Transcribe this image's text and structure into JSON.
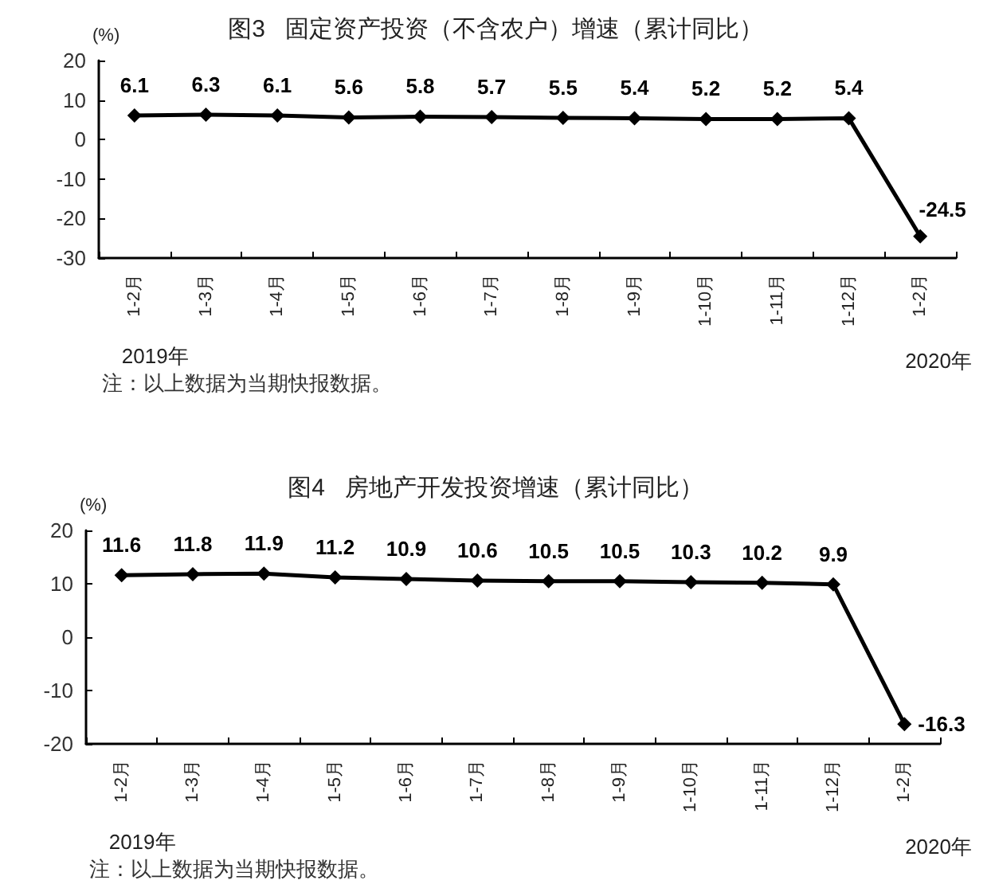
{
  "chart_data": [
    {
      "type": "line",
      "title": "图3   固定资产投资（不含农户）增速（累计同比）",
      "ylabel": "(%)",
      "categories": [
        "1-2月",
        "1-3月",
        "1-4月",
        "1-5月",
        "1-6月",
        "1-7月",
        "1-8月",
        "1-9月",
        "1-10月",
        "1-11月",
        "1-12月",
        "1-2月"
      ],
      "series": [
        {
          "color": "#000000",
          "values": [
            6.1,
            6.3,
            6.1,
            5.6,
            5.8,
            5.7,
            5.5,
            5.4,
            5.2,
            5.2,
            5.4,
            -24.5
          ]
        }
      ],
      "ylim": [
        -30,
        20
      ],
      "yticks": [
        -30,
        -20,
        -10,
        0,
        10,
        20
      ],
      "marker": "diamond",
      "data_labels": true,
      "annotations": [
        "2019年",
        "2020年",
        "注：以上数据为当期快报数据。"
      ]
    },
    {
      "type": "line",
      "title": "图4   房地产开发投资增速（累计同比）",
      "ylabel": "(%)",
      "categories": [
        "1-2月",
        "1-3月",
        "1-4月",
        "1-5月",
        "1-6月",
        "1-7月",
        "1-8月",
        "1-9月",
        "1-10月",
        "1-11月",
        "1-12月",
        "1-2月"
      ],
      "series": [
        {
          "color": "#000000",
          "values": [
            11.6,
            11.8,
            11.9,
            11.2,
            10.9,
            10.6,
            10.5,
            10.5,
            10.3,
            10.2,
            9.9,
            -16.3
          ]
        }
      ],
      "ylim": [
        -20,
        20
      ],
      "yticks": [
        -20,
        -10,
        0,
        10,
        20
      ],
      "marker": "diamond",
      "data_labels": true,
      "annotations": [
        "2019年",
        "2020年",
        "注：以上数据为当期快报数据。"
      ]
    }
  ]
}
